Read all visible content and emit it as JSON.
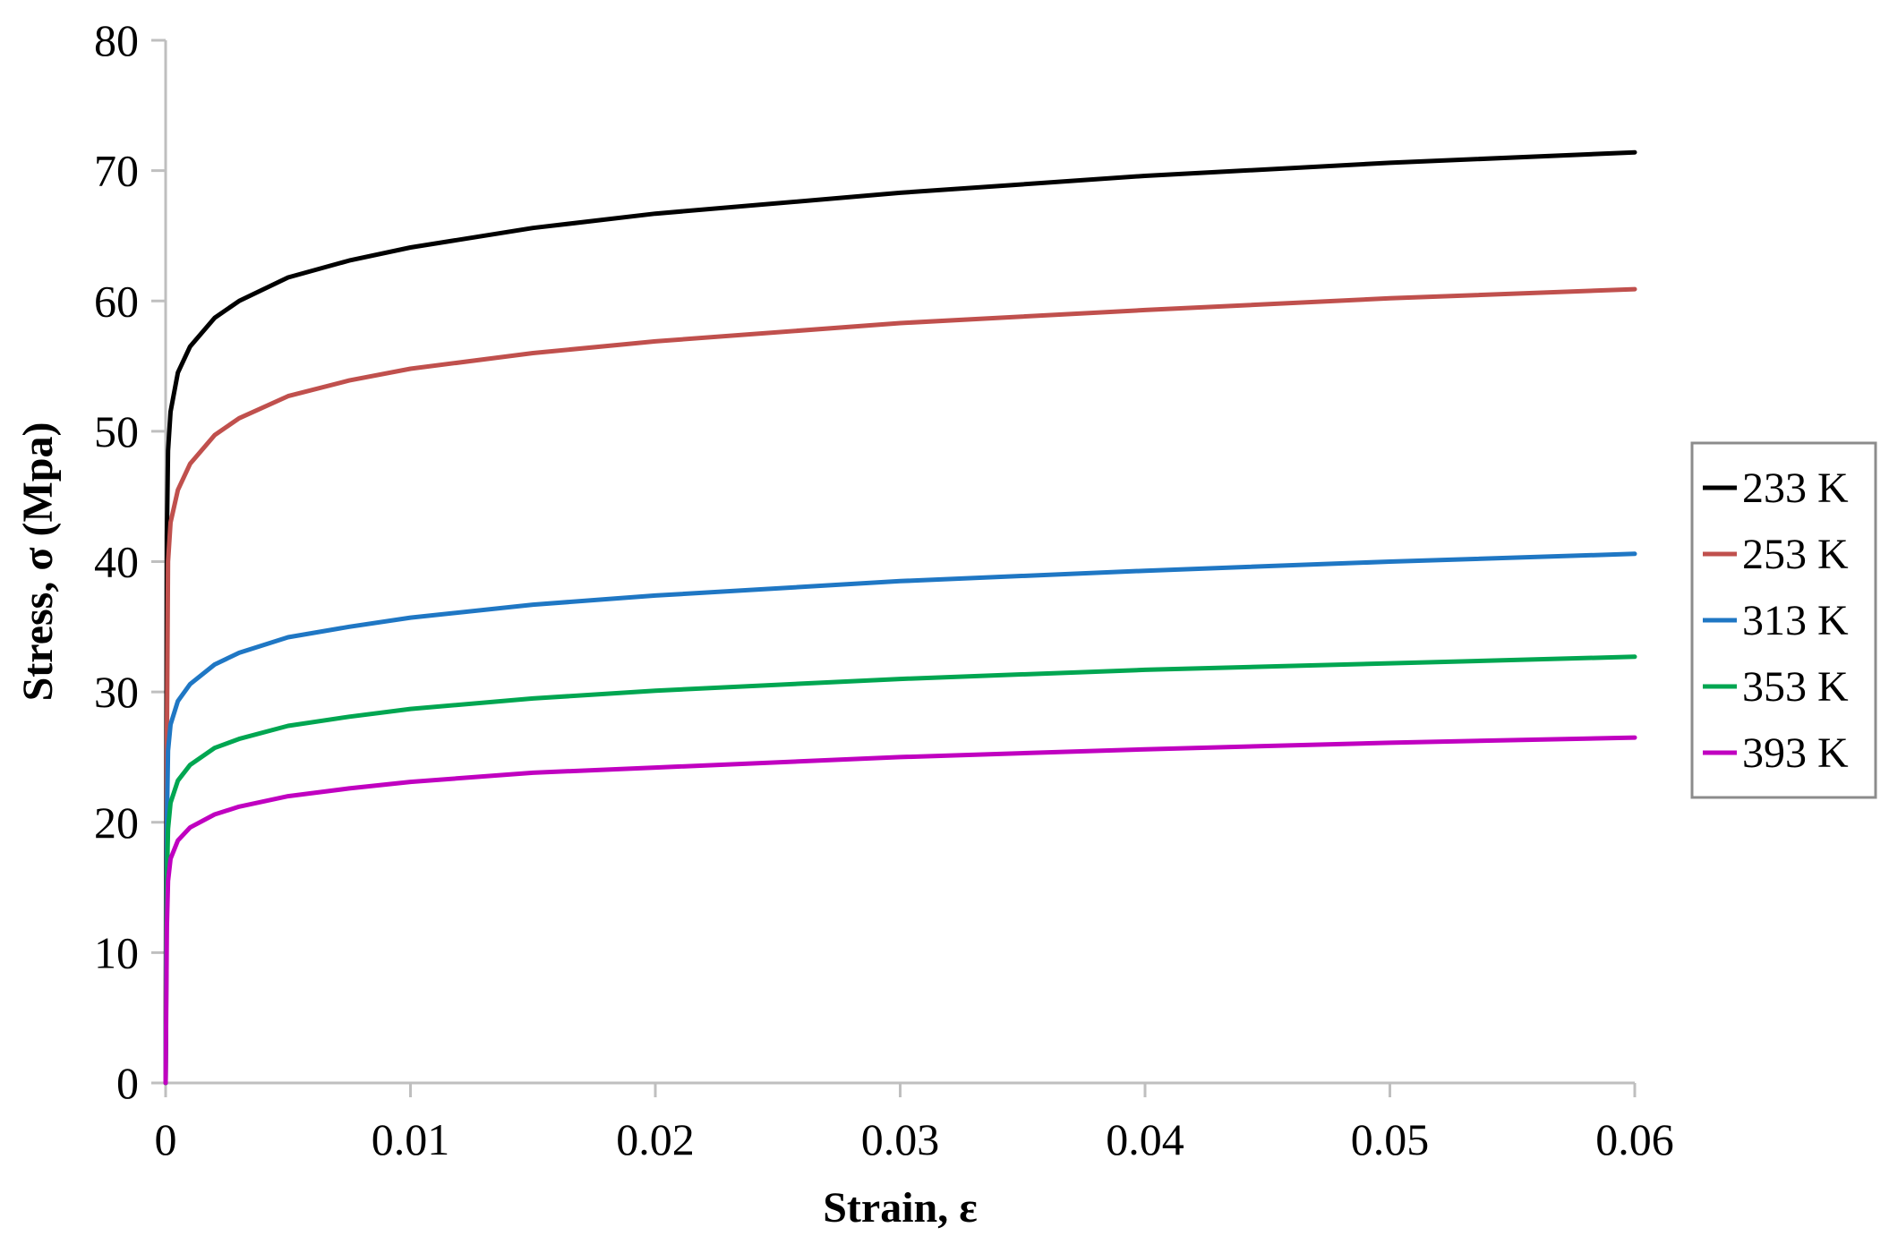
{
  "chart_data": {
    "type": "line",
    "title": "",
    "xlabel": "Strain, ε",
    "ylabel": "Stress, σ (Mpa)",
    "xlim": [
      0,
      0.06
    ],
    "ylim": [
      0,
      80
    ],
    "x_ticks": [
      0,
      0.01,
      0.02,
      0.03,
      0.04,
      0.05,
      0.06
    ],
    "x_tick_labels": [
      "0",
      "0.01",
      "0.02",
      "0.03",
      "0.04",
      "0.05",
      "0.06"
    ],
    "y_ticks": [
      0,
      10,
      20,
      30,
      40,
      50,
      60,
      70,
      80
    ],
    "y_tick_labels": [
      "0",
      "10",
      "20",
      "30",
      "40",
      "50",
      "60",
      "70",
      "80"
    ],
    "grid": false,
    "legend_position": "right",
    "series": [
      {
        "name": "233 K",
        "color": "#000000",
        "x": [
          0,
          5e-05,
          0.0001,
          0.0002,
          0.0005,
          0.001,
          0.002,
          0.003,
          0.005,
          0.0075,
          0.01,
          0.015,
          0.02,
          0.03,
          0.04,
          0.05,
          0.06
        ],
        "y": [
          0,
          42,
          48.5,
          51.5,
          54.5,
          56.5,
          58.7,
          60,
          61.8,
          63.1,
          64.1,
          65.6,
          66.7,
          68.3,
          69.6,
          70.6,
          71.4
        ]
      },
      {
        "name": "253 K",
        "color": "#c0504d",
        "x": [
          0,
          5e-05,
          0.0001,
          0.0002,
          0.0005,
          0.001,
          0.002,
          0.003,
          0.005,
          0.0075,
          0.01,
          0.015,
          0.02,
          0.03,
          0.04,
          0.05,
          0.06
        ],
        "y": [
          0,
          26,
          40,
          43,
          45.5,
          47.5,
          49.7,
          51,
          52.7,
          53.9,
          54.8,
          56,
          56.9,
          58.3,
          59.3,
          60.2,
          60.9
        ]
      },
      {
        "name": "313 K",
        "color": "#1f77c4",
        "x": [
          0,
          5e-05,
          0.0001,
          0.0002,
          0.0005,
          0.001,
          0.002,
          0.003,
          0.005,
          0.0075,
          0.01,
          0.015,
          0.02,
          0.03,
          0.04,
          0.05,
          0.06
        ],
        "y": [
          0,
          20,
          25.5,
          27.5,
          29.3,
          30.6,
          32.1,
          33,
          34.2,
          35,
          35.7,
          36.7,
          37.4,
          38.5,
          39.3,
          40,
          40.6
        ]
      },
      {
        "name": "353 K",
        "color": "#00a651",
        "x": [
          0,
          5e-05,
          0.0001,
          0.0002,
          0.0005,
          0.001,
          0.002,
          0.003,
          0.005,
          0.0075,
          0.01,
          0.015,
          0.02,
          0.03,
          0.04,
          0.05,
          0.06
        ],
        "y": [
          0,
          15.5,
          19.5,
          21.5,
          23.2,
          24.4,
          25.7,
          26.4,
          27.4,
          28.1,
          28.7,
          29.5,
          30.1,
          31,
          31.7,
          32.2,
          32.7
        ]
      },
      {
        "name": "393 K",
        "color": "#c000c0",
        "x": [
          0,
          5e-05,
          0.0001,
          0.0002,
          0.0005,
          0.001,
          0.002,
          0.003,
          0.005,
          0.0075,
          0.01,
          0.015,
          0.02,
          0.03,
          0.04,
          0.05,
          0.06
        ],
        "y": [
          0,
          12,
          15.5,
          17.2,
          18.6,
          19.6,
          20.6,
          21.2,
          22,
          22.6,
          23.1,
          23.8,
          24.2,
          25,
          25.6,
          26.1,
          26.5
        ]
      }
    ]
  }
}
